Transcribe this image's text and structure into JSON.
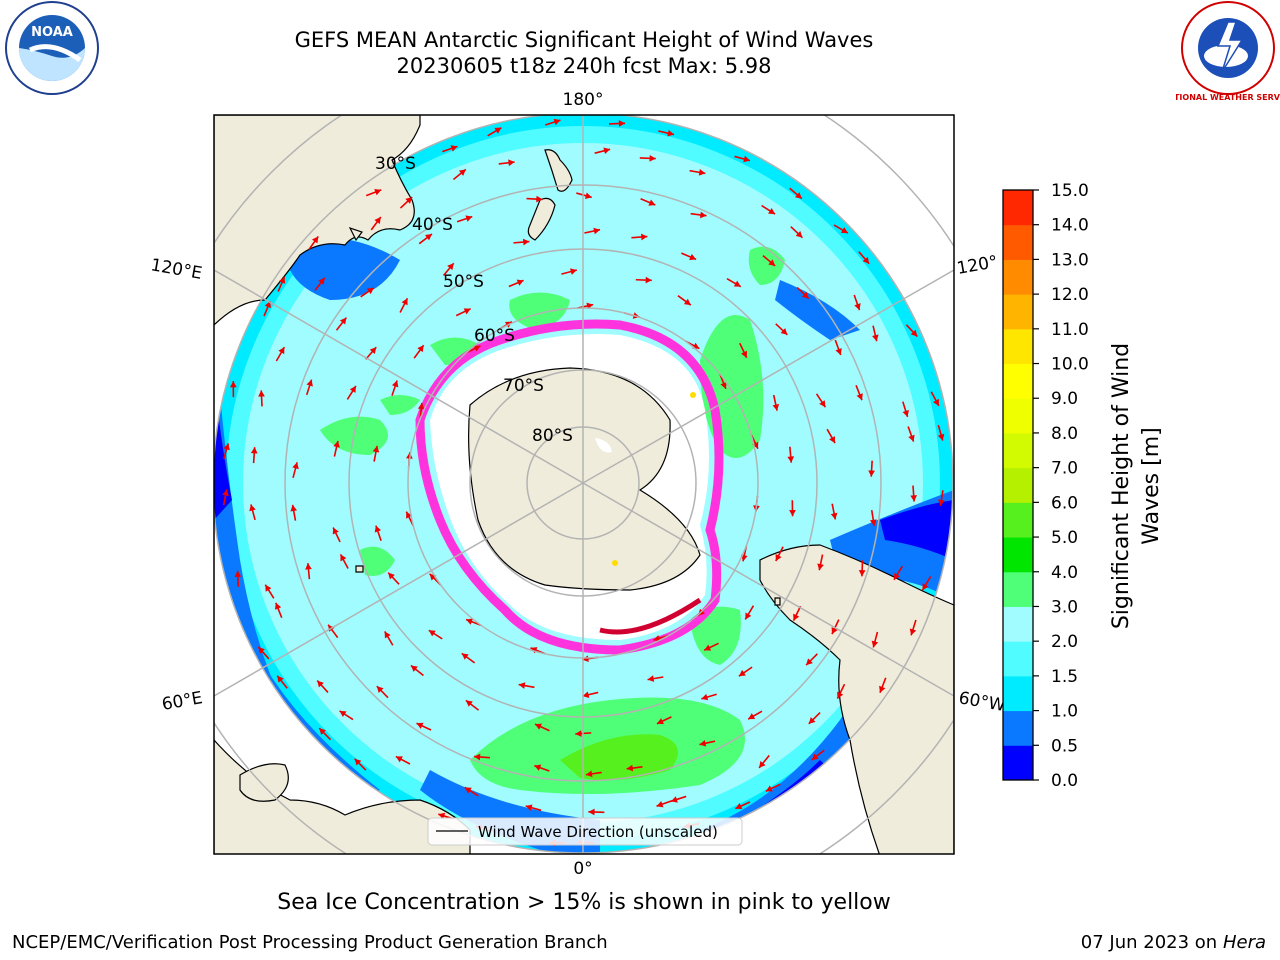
{
  "header": {
    "title_line1": "GEFS MEAN Antarctic Significant Height of Wind Waves",
    "title_line2": "20230605 t18z 240h fcst   Max: 5.98"
  },
  "map": {
    "lon_labels": {
      "top": "180°",
      "bottom": "0°",
      "upper_left": "120°E",
      "upper_right": "120°",
      "lower_left": "60°E",
      "lower_right": "60°W"
    },
    "lat_labels": [
      "30°S",
      "40°S",
      "50°S",
      "60°S",
      "70°S",
      "80°S"
    ],
    "legend_label": "Wind Wave Direction (unscaled)",
    "colors": {
      "land": "#efecdb",
      "ice_edge": "#ff33dd",
      "arrow": "#ee0000",
      "grid": "#b3b3b3"
    }
  },
  "colorbar": {
    "label_line1": "Significant Height of Wind",
    "label_line2": "Waves [m]",
    "ticks": [
      "0.0",
      "0.5",
      "1.0",
      "1.5",
      "2.0",
      "3.0",
      "4.0",
      "5.0",
      "6.0",
      "7.0",
      "8.0",
      "9.0",
      "10.0",
      "11.0",
      "12.0",
      "13.0",
      "14.0",
      "15.0"
    ],
    "colors": [
      "#0000ff",
      "#0a78ff",
      "#00ebff",
      "#50fcff",
      "#a0fcff",
      "#50ff78",
      "#00e600",
      "#55f01e",
      "#b4f000",
      "#d2fa00",
      "#f0ff00",
      "#ffff00",
      "#ffe600",
      "#ffb400",
      "#ff8c00",
      "#ff5a00",
      "#ff2800",
      "#ff0000"
    ]
  },
  "logos": {
    "noaa_text": "NOAA",
    "nws_text": "NATIONAL WEATHER SERVICE"
  },
  "footer": {
    "note": "Sea Ice Concentration > 15% is shown in pink to yellow",
    "left": "NCEP/EMC/Verification Post Processing Product Generation Branch",
    "right_date": "07 Jun 2023 on",
    "right_host": "Hera"
  }
}
